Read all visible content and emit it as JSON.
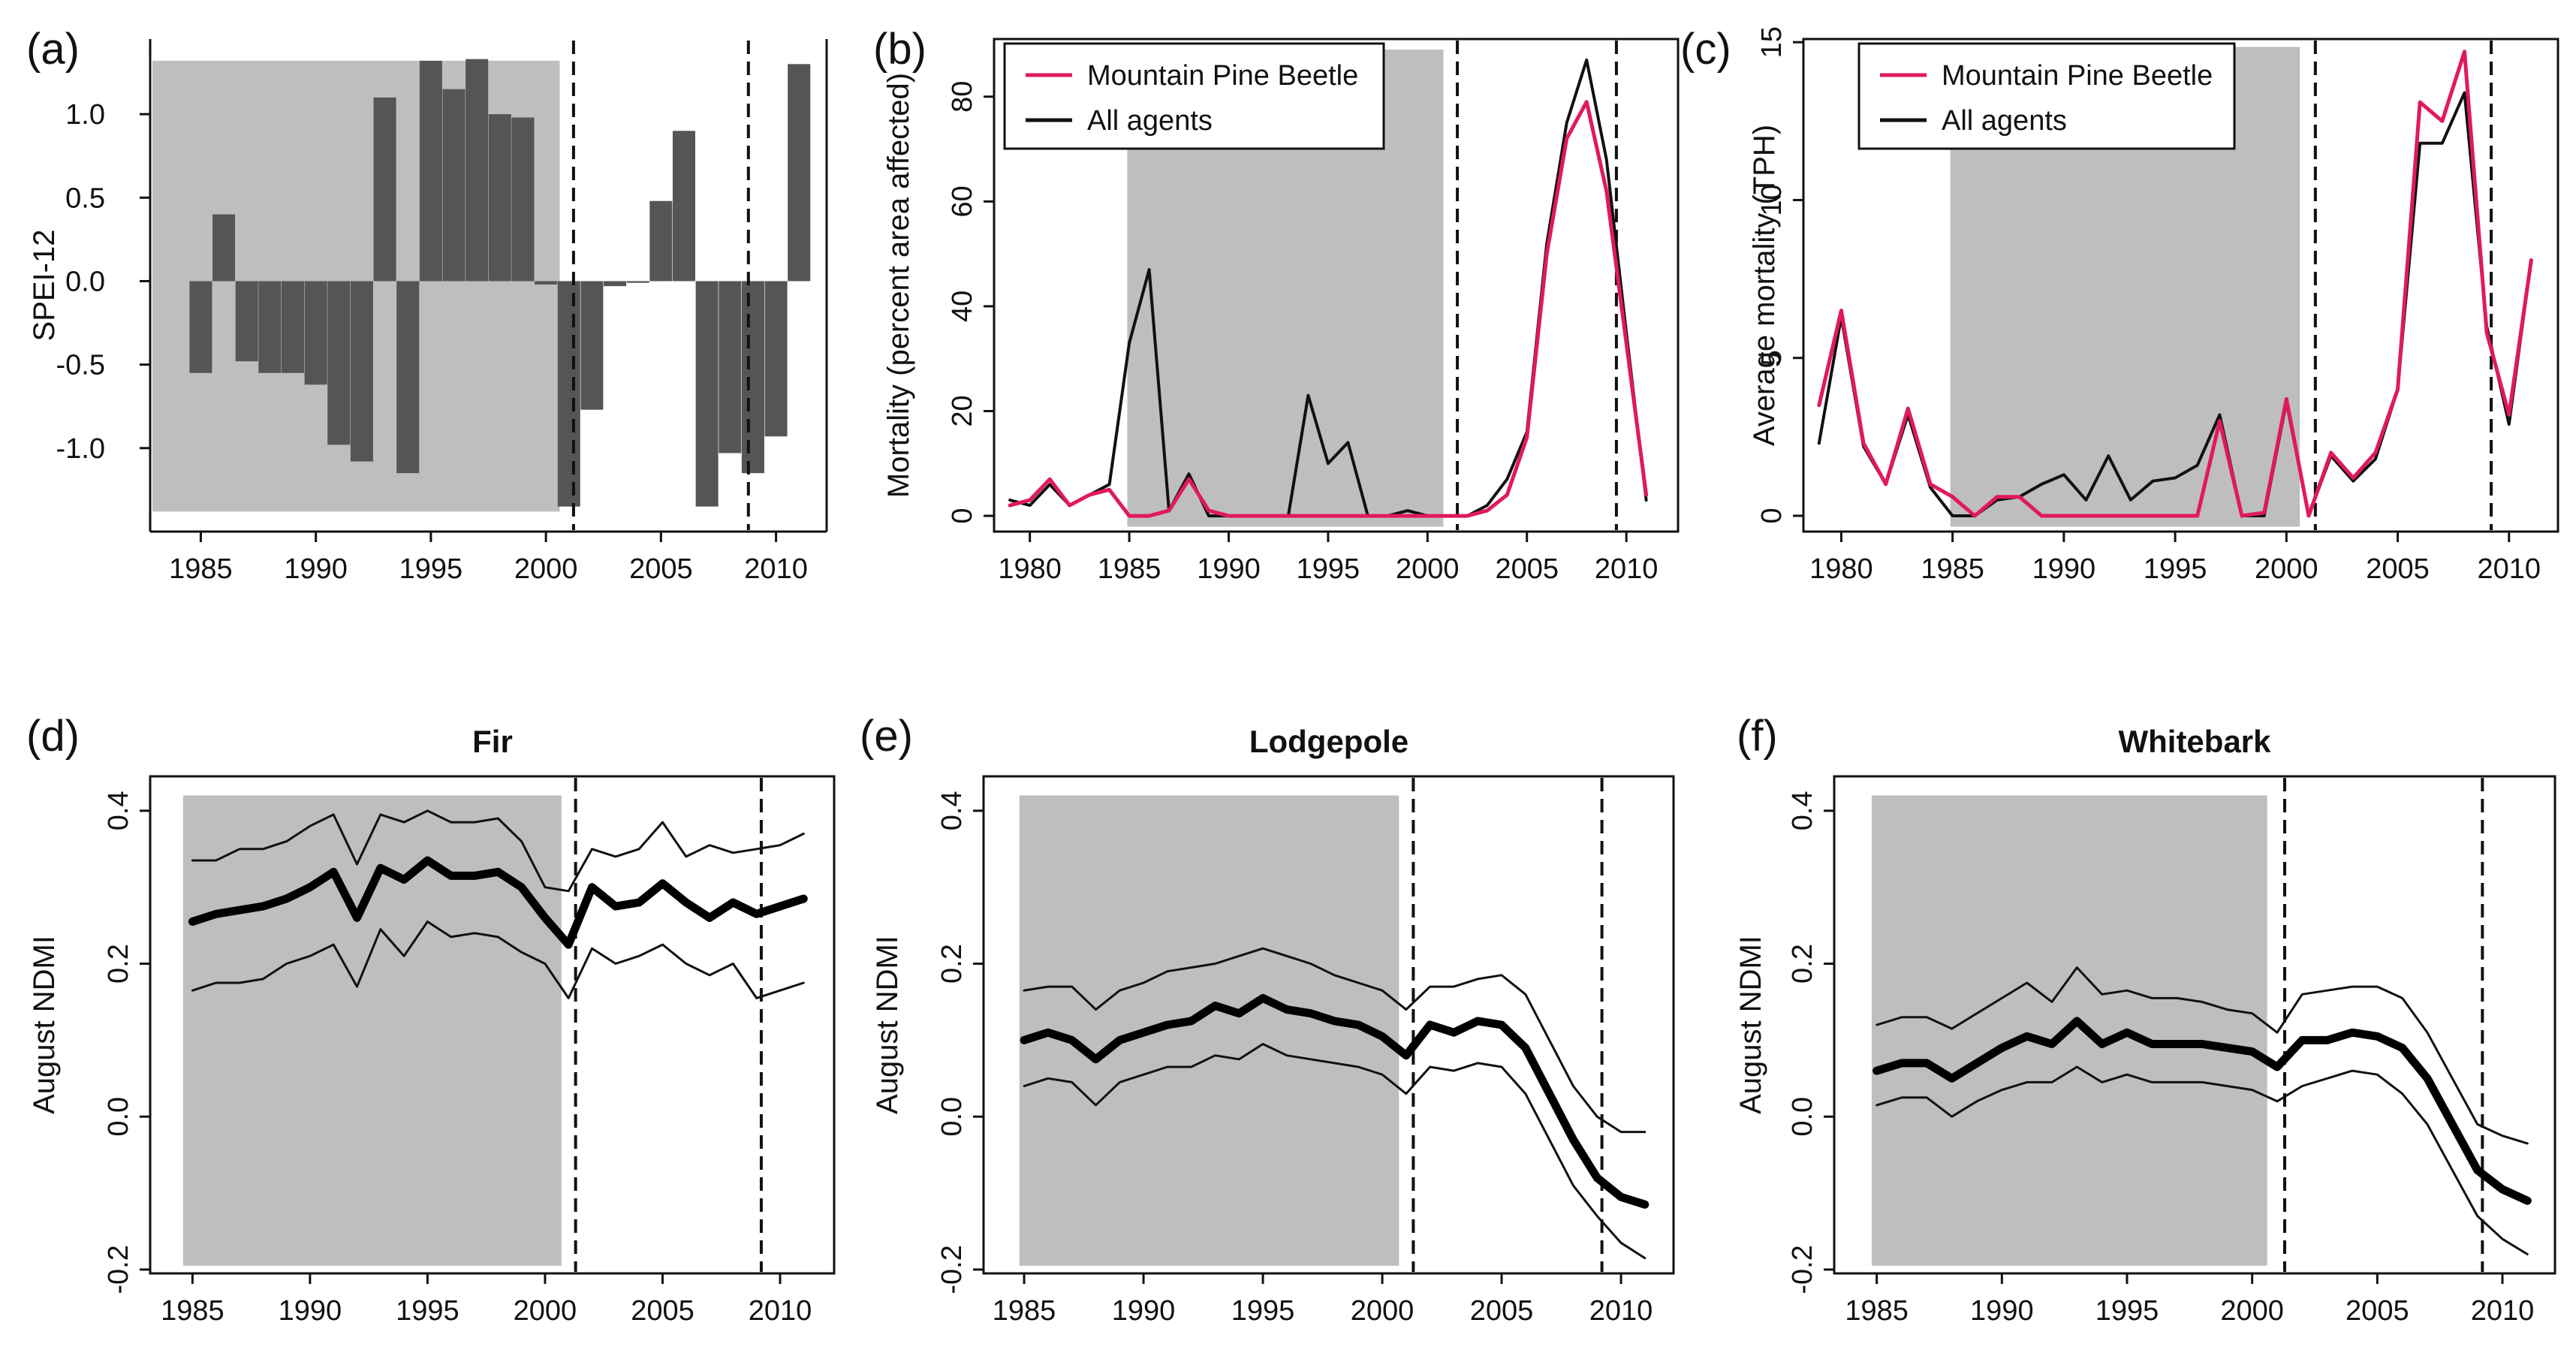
{
  "figure": {
    "panel_count": 6
  },
  "chart_data": [
    {
      "id": "a",
      "panel_label": "(a)",
      "type": "bar",
      "title": "",
      "xlabel": "",
      "ylabel": "SPEI-12",
      "xlim": [
        1982.8,
        2012.2
      ],
      "ylim": [
        -1.5,
        1.45
      ],
      "xticks": [
        1985,
        1990,
        1995,
        2000,
        2005,
        2010
      ],
      "yticks": [
        -1.0,
        -0.5,
        0.0,
        0.5,
        1.0
      ],
      "ytick_labels": [
        "-1.0",
        "-0.5",
        "0.0",
        "0.5",
        "1.0"
      ],
      "ytick_rotation": "horizontal",
      "shaded_period": [
        1982.9,
        2000.6
      ],
      "dashed_lines": [
        2001.2,
        2008.8
      ],
      "colors": {
        "bar": "#555555",
        "shade": "#bebebe",
        "dashed": "#111111"
      },
      "categories": [
        1985,
        1986,
        1987,
        1988,
        1989,
        1990,
        1991,
        1992,
        1993,
        1994,
        1995,
        1996,
        1997,
        1998,
        1999,
        2000,
        2001,
        2002,
        2003,
        2004,
        2005,
        2006,
        2007,
        2008,
        2009,
        2010,
        2011
      ],
      "values": [
        -0.55,
        0.4,
        -0.48,
        -0.55,
        -0.55,
        -0.62,
        -0.98,
        -1.08,
        1.1,
        -1.15,
        1.32,
        1.15,
        1.33,
        1.0,
        0.98,
        -0.02,
        -1.35,
        -0.77,
        -0.03,
        -0.01,
        0.48,
        0.9,
        -1.35,
        -1.03,
        -1.15,
        -0.93,
        1.3
      ]
    },
    {
      "id": "b",
      "panel_label": "(b)",
      "type": "line",
      "title": "",
      "xlabel": "",
      "ylabel": "Mortality (percent area affected)",
      "xlim": [
        1978.2,
        2012.6
      ],
      "ylim": [
        -3,
        91
      ],
      "xticks": [
        1980,
        1985,
        1990,
        1995,
        2000,
        2005,
        2010
      ],
      "yticks": [
        0,
        20,
        40,
        60,
        80
      ],
      "ytick_labels": [
        "0",
        "20",
        "40",
        "60",
        "80"
      ],
      "ytick_rotation": "vertical",
      "shaded_period": [
        1984.9,
        2000.8
      ],
      "shade_top": 89,
      "dashed_lines": [
        2001.5,
        2009.5
      ],
      "legend": {
        "position": "top-left",
        "entries": [
          "Mountain Pine Beetle",
          "All agents"
        ]
      },
      "colors": {
        "shade": "#bebebe",
        "dashed": "#111111"
      },
      "x": [
        1979,
        1980,
        1981,
        1982,
        1983,
        1984,
        1985,
        1986,
        1987,
        1988,
        1989,
        1990,
        1991,
        1992,
        1993,
        1994,
        1995,
        1996,
        1997,
        1998,
        1999,
        2000,
        2001,
        2002,
        2003,
        2004,
        2005,
        2006,
        2007,
        2008,
        2009,
        2010,
        2011
      ],
      "series": [
        {
          "name": "All agents",
          "color": "#111111",
          "width": 4,
          "values": [
            3,
            2,
            6,
            2,
            4,
            6,
            33,
            47,
            1,
            8,
            0,
            0,
            0,
            0,
            0,
            23,
            10,
            14,
            0,
            0,
            1,
            0,
            0,
            0,
            2,
            7,
            16,
            52,
            75,
            87,
            68,
            35,
            3
          ]
        },
        {
          "name": "Mountain Pine Beetle",
          "color": "#e0195e",
          "width": 5,
          "values": [
            2,
            3,
            7,
            2,
            4,
            5,
            0,
            0,
            1,
            7,
            1,
            0,
            0,
            0,
            0,
            0,
            0,
            0,
            0,
            0,
            0,
            0,
            0,
            0,
            1,
            4,
            15,
            50,
            72,
            79,
            62,
            33,
            4
          ]
        }
      ]
    },
    {
      "id": "c",
      "panel_label": "(c)",
      "type": "line",
      "title": "",
      "xlabel": "",
      "ylabel": "Average mortality (TPH)",
      "xlim": [
        1978.3,
        2012.2
      ],
      "ylim": [
        -0.5,
        15.1
      ],
      "xticks": [
        1980,
        1985,
        1990,
        1995,
        2000,
        2005,
        2010
      ],
      "yticks": [
        0,
        5,
        10,
        15
      ],
      "ytick_labels": [
        "0",
        "5",
        "10",
        "15"
      ],
      "ytick_rotation": "vertical",
      "shaded_period": [
        1984.9,
        2000.6
      ],
      "shade_top": 14.85,
      "dashed_lines": [
        2001.3,
        2009.2
      ],
      "legend": {
        "position": "top-left",
        "entries": [
          "Mountain Pine Beetle",
          "All agents"
        ]
      },
      "colors": {
        "shade": "#bebebe",
        "dashed": "#111111"
      },
      "x": [
        1979,
        1980,
        1981,
        1982,
        1983,
        1984,
        1985,
        1986,
        1987,
        1988,
        1989,
        1990,
        1991,
        1992,
        1993,
        1994,
        1995,
        1996,
        1997,
        1998,
        1999,
        2000,
        2001,
        2002,
        2003,
        2004,
        2005,
        2006,
        2007,
        2008,
        2009,
        2010,
        2011
      ],
      "series": [
        {
          "name": "All agents",
          "color": "#111111",
          "width": 4,
          "values": [
            2.3,
            6.3,
            2.2,
            1.0,
            3.2,
            0.9,
            0.0,
            0.0,
            0.5,
            0.6,
            1.0,
            1.3,
            0.5,
            1.9,
            0.5,
            1.1,
            1.2,
            1.6,
            3.2,
            0.0,
            0.0,
            3.6,
            0.0,
            1.9,
            1.1,
            1.8,
            4.0,
            11.8,
            11.8,
            13.4,
            6.0,
            2.9,
            8.1
          ]
        },
        {
          "name": "Mountain Pine Beetle",
          "color": "#e0195e",
          "width": 5,
          "values": [
            3.5,
            6.5,
            2.3,
            1.0,
            3.4,
            1.0,
            0.6,
            0.0,
            0.6,
            0.6,
            0.0,
            0.0,
            0.0,
            0.0,
            0.0,
            0.0,
            0.0,
            0.0,
            3.0,
            0.0,
            0.1,
            3.7,
            0.0,
            2.0,
            1.2,
            2.0,
            4.0,
            13.1,
            12.5,
            14.7,
            5.8,
            3.2,
            8.1
          ]
        }
      ]
    },
    {
      "id": "d",
      "panel_label": "(d)",
      "type": "line",
      "title": "Fir",
      "xlabel": "",
      "ylabel": "August NDMI",
      "xlim": [
        1983.2,
        2012.3
      ],
      "ylim": [
        -0.205,
        0.445
      ],
      "xticks": [
        1985,
        1990,
        1995,
        2000,
        2005,
        2010
      ],
      "yticks": [
        -0.2,
        0.0,
        0.2,
        0.4
      ],
      "ytick_labels": [
        "-0.2",
        "0.0",
        "0.2",
        "0.4"
      ],
      "ytick_rotation": "vertical",
      "shaded_period": [
        1984.6,
        2000.7
      ],
      "shade_range": [
        -0.195,
        0.42
      ],
      "dashed_lines": [
        2001.3,
        2009.2
      ],
      "colors": {
        "shade": "#bebebe",
        "dashed": "#111111"
      },
      "x": [
        1985,
        1986,
        1987,
        1988,
        1989,
        1990,
        1991,
        1992,
        1993,
        1994,
        1995,
        1996,
        1997,
        1998,
        1999,
        2000,
        2001,
        2002,
        2003,
        2004,
        2005,
        2006,
        2007,
        2008,
        2009,
        2010,
        2011
      ],
      "series": [
        {
          "name": "Upper bound",
          "color": "#111111",
          "width": 3,
          "values": [
            0.335,
            0.335,
            0.35,
            0.35,
            0.36,
            0.38,
            0.395,
            0.33,
            0.395,
            0.385,
            0.4,
            0.385,
            0.385,
            0.39,
            0.36,
            0.3,
            0.295,
            0.35,
            0.34,
            0.35,
            0.385,
            0.34,
            0.355,
            0.345,
            0.35,
            0.355,
            0.37
          ]
        },
        {
          "name": "Mean",
          "color": "#000000",
          "width": 11,
          "values": [
            0.255,
            0.265,
            0.27,
            0.275,
            0.285,
            0.3,
            0.32,
            0.26,
            0.325,
            0.31,
            0.335,
            0.315,
            0.315,
            0.32,
            0.3,
            0.26,
            0.225,
            0.3,
            0.275,
            0.28,
            0.305,
            0.28,
            0.26,
            0.28,
            0.265,
            0.275,
            0.285
          ]
        },
        {
          "name": "Lower bound",
          "color": "#111111",
          "width": 3,
          "values": [
            0.165,
            0.175,
            0.175,
            0.18,
            0.2,
            0.21,
            0.225,
            0.17,
            0.245,
            0.21,
            0.255,
            0.235,
            0.24,
            0.235,
            0.215,
            0.2,
            0.155,
            0.22,
            0.2,
            0.21,
            0.225,
            0.2,
            0.185,
            0.2,
            0.155,
            0.165,
            0.175
          ]
        }
      ]
    },
    {
      "id": "e",
      "panel_label": "(e)",
      "type": "line",
      "title": "Lodgepole",
      "xlabel": "",
      "ylabel": "August NDMI",
      "xlim": [
        1983.3,
        2012.2
      ],
      "ylim": [
        -0.205,
        0.445
      ],
      "xticks": [
        1985,
        1990,
        1995,
        2000,
        2005,
        2010
      ],
      "yticks": [
        -0.2,
        0.0,
        0.2,
        0.4
      ],
      "ytick_labels": [
        "-0.2",
        "0.0",
        "0.2",
        "0.4"
      ],
      "ytick_rotation": "vertical",
      "shaded_period": [
        1984.8,
        2000.7
      ],
      "shade_range": [
        -0.195,
        0.42
      ],
      "dashed_lines": [
        2001.3,
        2009.2
      ],
      "colors": {
        "shade": "#bebebe",
        "dashed": "#111111"
      },
      "x": [
        1985,
        1986,
        1987,
        1988,
        1989,
        1990,
        1991,
        1992,
        1993,
        1994,
        1995,
        1996,
        1997,
        1998,
        1999,
        2000,
        2001,
        2002,
        2003,
        2004,
        2005,
        2006,
        2007,
        2008,
        2009,
        2010,
        2011
      ],
      "series": [
        {
          "name": "Upper bound",
          "color": "#111111",
          "width": 3,
          "values": [
            0.165,
            0.17,
            0.17,
            0.14,
            0.165,
            0.175,
            0.19,
            0.195,
            0.2,
            0.21,
            0.22,
            0.21,
            0.2,
            0.185,
            0.175,
            0.165,
            0.14,
            0.17,
            0.17,
            0.18,
            0.185,
            0.16,
            0.1,
            0.04,
            0.0,
            -0.02,
            -0.02
          ]
        },
        {
          "name": "Mean",
          "color": "#000000",
          "width": 11,
          "values": [
            0.1,
            0.11,
            0.1,
            0.075,
            0.1,
            0.11,
            0.12,
            0.125,
            0.145,
            0.135,
            0.155,
            0.14,
            0.135,
            0.125,
            0.12,
            0.105,
            0.08,
            0.12,
            0.11,
            0.125,
            0.12,
            0.09,
            0.03,
            -0.03,
            -0.08,
            -0.105,
            -0.115
          ]
        },
        {
          "name": "Lower bound",
          "color": "#111111",
          "width": 3,
          "values": [
            0.04,
            0.05,
            0.045,
            0.015,
            0.045,
            0.055,
            0.065,
            0.065,
            0.08,
            0.075,
            0.095,
            0.08,
            0.075,
            0.07,
            0.065,
            0.055,
            0.03,
            0.065,
            0.06,
            0.07,
            0.065,
            0.03,
            -0.03,
            -0.09,
            -0.13,
            -0.165,
            -0.185
          ]
        }
      ]
    },
    {
      "id": "f",
      "panel_label": "(f)",
      "type": "line",
      "title": "Whitebark",
      "xlabel": "",
      "ylabel": "August NDMI",
      "xlim": [
        1983.3,
        2012.1
      ],
      "ylim": [
        -0.205,
        0.445
      ],
      "xticks": [
        1985,
        1990,
        1995,
        2000,
        2005,
        2010
      ],
      "yticks": [
        -0.2,
        0.0,
        0.2,
        0.4
      ],
      "ytick_labels": [
        "-0.2",
        "0.0",
        "0.2",
        "0.4"
      ],
      "ytick_rotation": "vertical",
      "shaded_period": [
        1984.8,
        2000.6
      ],
      "shade_range": [
        -0.195,
        0.42
      ],
      "dashed_lines": [
        2001.3,
        2009.2
      ],
      "colors": {
        "shade": "#bebebe",
        "dashed": "#111111"
      },
      "x": [
        1985,
        1986,
        1987,
        1988,
        1989,
        1990,
        1991,
        1992,
        1993,
        1994,
        1995,
        1996,
        1997,
        1998,
        1999,
        2000,
        2001,
        2002,
        2003,
        2004,
        2005,
        2006,
        2007,
        2008,
        2009,
        2010,
        2011
      ],
      "series": [
        {
          "name": "Upper bound",
          "color": "#111111",
          "width": 3,
          "values": [
            0.12,
            0.13,
            0.13,
            0.115,
            0.135,
            0.155,
            0.175,
            0.15,
            0.195,
            0.16,
            0.165,
            0.155,
            0.155,
            0.15,
            0.14,
            0.135,
            0.11,
            0.16,
            0.165,
            0.17,
            0.17,
            0.155,
            0.11,
            0.05,
            -0.01,
            -0.025,
            -0.035
          ]
        },
        {
          "name": "Mean",
          "color": "#000000",
          "width": 11,
          "values": [
            0.06,
            0.07,
            0.07,
            0.05,
            0.07,
            0.09,
            0.105,
            0.095,
            0.125,
            0.095,
            0.11,
            0.095,
            0.095,
            0.095,
            0.09,
            0.085,
            0.065,
            0.1,
            0.1,
            0.11,
            0.105,
            0.09,
            0.05,
            -0.01,
            -0.07,
            -0.095,
            -0.11
          ]
        },
        {
          "name": "Lower bound",
          "color": "#111111",
          "width": 3,
          "values": [
            0.015,
            0.025,
            0.025,
            0.0,
            0.02,
            0.035,
            0.045,
            0.045,
            0.065,
            0.045,
            0.055,
            0.045,
            0.045,
            0.045,
            0.04,
            0.035,
            0.02,
            0.04,
            0.05,
            0.06,
            0.055,
            0.03,
            -0.01,
            -0.07,
            -0.13,
            -0.16,
            -0.18
          ]
        }
      ]
    }
  ]
}
